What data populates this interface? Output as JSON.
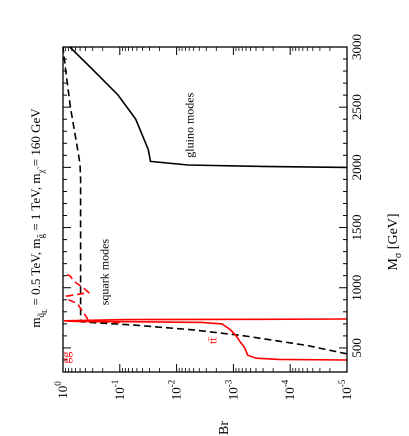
{
  "chart_data": {
    "type": "line",
    "orientation": "rotated-90-clockwise",
    "title": {
      "m_base": "m",
      "m_sub": "q̃",
      "m_sub2": "L",
      "m_val": " = 0.5 TeV, m",
      "g_sub": "g̃",
      "g_val": " = 1 TeV, m",
      "chi_sub": "χ̃",
      "chi_val": " = 160 GeV"
    },
    "xlabel": {
      "base": "M",
      "sub": "σ",
      "unit": " [GeV]"
    },
    "ylabel": "Br",
    "xlim": [
      300,
      3000
    ],
    "ylim_log10": [
      -5,
      0
    ],
    "y_scale": "log",
    "x_ticks_labeled": [
      "500",
      "1000",
      "1500",
      "2000",
      "2500",
      "3000"
    ],
    "x_tick_values": [
      500,
      1000,
      1500,
      2000,
      2500,
      3000
    ],
    "y_ticks": [
      {
        "base": "10",
        "exp": "0",
        "value": 0
      },
      {
        "base": "10",
        "exp": "-1",
        "value": -1
      },
      {
        "base": "10",
        "exp": "-2",
        "value": -2
      },
      {
        "base": "10",
        "exp": "-3",
        "value": -3
      },
      {
        "base": "10",
        "exp": "-4",
        "value": -4
      },
      {
        "base": "10",
        "exp": "-5",
        "value": -5
      }
    ],
    "annotations": [
      {
        "text": "gluino modes",
        "color": "#000000"
      },
      {
        "text": "squark modes",
        "color": "#000000"
      },
      {
        "text": "tt̄",
        "color": "#ff0000"
      },
      {
        "text": "gg",
        "color": "#ff0000"
      }
    ],
    "series": [
      {
        "color": "#000000",
        "dash": "solid",
        "points": [
          [
            2000,
            -5
          ],
          [
            2008,
            -3.5
          ],
          [
            2020,
            -2.2
          ],
          [
            2050,
            -1.54
          ],
          [
            2150,
            -1.5
          ],
          [
            2400,
            -1.28
          ],
          [
            2600,
            -0.97
          ],
          [
            2800,
            -0.55
          ],
          [
            3000,
            -0.12
          ]
        ]
      },
      {
        "color": "#000000",
        "dash": "dashed",
        "points": [
          [
            450,
            -5
          ],
          [
            520,
            -4.3
          ],
          [
            600,
            -3.2
          ],
          [
            650,
            -2.3
          ],
          [
            690,
            -1.25
          ],
          [
            708,
            -0.62
          ],
          [
            718,
            -0.31
          ],
          [
            760,
            -0.31
          ],
          [
            1000,
            -0.31
          ],
          [
            1500,
            -0.31
          ],
          [
            1900,
            -0.31
          ],
          [
            2030,
            -0.3
          ],
          [
            2200,
            -0.24
          ],
          [
            2500,
            -0.13
          ],
          [
            2800,
            -0.05
          ],
          [
            3000,
            0
          ]
        ]
      },
      {
        "color": "#ff0000",
        "dash": "solid",
        "points": [
          [
            400,
            -5
          ],
          [
            405,
            -3.8
          ],
          [
            415,
            -3.4
          ],
          [
            440,
            -3.25
          ],
          [
            500,
            -3.2
          ],
          [
            550,
            -3.12
          ],
          [
            600,
            -3.05
          ],
          [
            650,
            -2.95
          ],
          [
            700,
            -2.8
          ],
          [
            712,
            -2.45
          ],
          [
            716,
            -1.6
          ],
          [
            720,
            -0.22
          ],
          [
            725,
            -0.02
          ],
          [
            735,
            -1.1
          ],
          [
            738,
            -3.5
          ],
          [
            740,
            -5
          ]
        ]
      },
      {
        "color": "#ff0000",
        "dash": "dashed",
        "points": [
          [
            712,
            -1.0
          ],
          [
            720,
            -0.45
          ],
          [
            750,
            -0.42
          ],
          [
            800,
            -0.35
          ],
          [
            870,
            -0.25
          ],
          [
            900,
            -0.1
          ],
          [
            930,
            -0.06
          ],
          [
            960,
            -0.45
          ],
          [
            1000,
            -0.36
          ],
          [
            1050,
            -0.2
          ],
          [
            1100,
            -0.12
          ],
          [
            1120,
            0
          ]
        ]
      }
    ]
  }
}
